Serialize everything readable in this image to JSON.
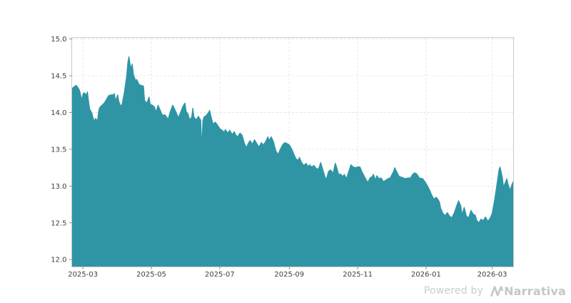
{
  "chart_data": {
    "type": "area",
    "grid": true,
    "legend": "none",
    "x_axis": {
      "range": [
        "2025-02-19",
        "2026-03-20"
      ],
      "tick_dates": [
        "2025-03-01",
        "2025-05-01",
        "2025-07-01",
        "2025-09-01",
        "2025-11-01",
        "2026-01-01",
        "2026-03-01"
      ],
      "tick_labels": [
        "2025-03",
        "2025-05",
        "2025-07",
        "2025-09",
        "2025-11",
        "2026-01",
        "2026-03"
      ]
    },
    "y_axis": {
      "range": [
        11.9,
        15.02
      ],
      "ticks": [
        12.0,
        12.5,
        13.0,
        13.5,
        14.0,
        14.5,
        15.0
      ],
      "tick_labels": [
        "12.0",
        "12.5",
        "13.0",
        "13.5",
        "14.0",
        "14.5",
        "15.0"
      ]
    },
    "series": [
      {
        "name": "value",
        "color": "#2F95A5",
        "points": [
          [
            "2025-02-19",
            14.32
          ],
          [
            "2025-02-21",
            14.35
          ],
          [
            "2025-02-23",
            14.37
          ],
          [
            "2025-02-25",
            14.33
          ],
          [
            "2025-02-26",
            14.3
          ],
          [
            "2025-02-28",
            14.17
          ],
          [
            "2025-03-01",
            14.25
          ],
          [
            "2025-03-02",
            14.27
          ],
          [
            "2025-03-04",
            14.24
          ],
          [
            "2025-03-05",
            14.28
          ],
          [
            "2025-03-06",
            14.15
          ],
          [
            "2025-03-07",
            14.05
          ],
          [
            "2025-03-09",
            13.99
          ],
          [
            "2025-03-10",
            13.93
          ],
          [
            "2025-03-11",
            13.87
          ],
          [
            "2025-03-12",
            13.92
          ],
          [
            "2025-03-14",
            13.89
          ],
          [
            "2025-03-15",
            14.02
          ],
          [
            "2025-03-16",
            14.07
          ],
          [
            "2025-03-18",
            14.1
          ],
          [
            "2025-03-20",
            14.13
          ],
          [
            "2025-03-22",
            14.18
          ],
          [
            "2025-03-24",
            14.23
          ],
          [
            "2025-03-26",
            14.24
          ],
          [
            "2025-03-28",
            14.24
          ],
          [
            "2025-03-29",
            14.26
          ],
          [
            "2025-03-30",
            14.16
          ],
          [
            "2025-04-01",
            14.24
          ],
          [
            "2025-04-02",
            14.15
          ],
          [
            "2025-04-04",
            14.08
          ],
          [
            "2025-04-05",
            14.12
          ],
          [
            "2025-04-07",
            14.28
          ],
          [
            "2025-04-09",
            14.5
          ],
          [
            "2025-04-10",
            14.68
          ],
          [
            "2025-04-11",
            14.76
          ],
          [
            "2025-04-12",
            14.66
          ],
          [
            "2025-04-13",
            14.6
          ],
          [
            "2025-04-14",
            14.66
          ],
          [
            "2025-04-15",
            14.52
          ],
          [
            "2025-04-17",
            14.43
          ],
          [
            "2025-04-18",
            14.45
          ],
          [
            "2025-04-20",
            14.38
          ],
          [
            "2025-04-22",
            14.37
          ],
          [
            "2025-04-24",
            14.36
          ],
          [
            "2025-04-25",
            14.16
          ],
          [
            "2025-04-27",
            14.13
          ],
          [
            "2025-04-29",
            14.21
          ],
          [
            "2025-04-30",
            14.11
          ],
          [
            "2025-05-02",
            14.1
          ],
          [
            "2025-05-04",
            14.07
          ],
          [
            "2025-05-05",
            14.0
          ],
          [
            "2025-05-07",
            14.1
          ],
          [
            "2025-05-09",
            14.03
          ],
          [
            "2025-05-11",
            13.96
          ],
          [
            "2025-05-13",
            13.97
          ],
          [
            "2025-05-15",
            13.93
          ],
          [
            "2025-05-16",
            13.91
          ],
          [
            "2025-05-18",
            14.02
          ],
          [
            "2025-05-20",
            14.1
          ],
          [
            "2025-05-22",
            14.04
          ],
          [
            "2025-05-24",
            13.97
          ],
          [
            "2025-05-25",
            13.93
          ],
          [
            "2025-05-27",
            14.0
          ],
          [
            "2025-05-29",
            14.08
          ],
          [
            "2025-05-31",
            14.13
          ],
          [
            "2025-06-01",
            14.02
          ],
          [
            "2025-06-03",
            13.97
          ],
          [
            "2025-06-04",
            13.9
          ],
          [
            "2025-06-06",
            13.94
          ],
          [
            "2025-06-07",
            14.06
          ],
          [
            "2025-06-08",
            13.94
          ],
          [
            "2025-06-10",
            13.9
          ],
          [
            "2025-06-12",
            13.95
          ],
          [
            "2025-06-13",
            13.92
          ],
          [
            "2025-06-14",
            13.9
          ],
          [
            "2025-06-15",
            13.52
          ],
          [
            "2025-06-16",
            13.89
          ],
          [
            "2025-06-17",
            13.94
          ],
          [
            "2025-06-19",
            13.96
          ],
          [
            "2025-06-21",
            14.0
          ],
          [
            "2025-06-22",
            14.03
          ],
          [
            "2025-06-24",
            13.9
          ],
          [
            "2025-06-25",
            13.84
          ],
          [
            "2025-06-27",
            13.87
          ],
          [
            "2025-06-29",
            13.83
          ],
          [
            "2025-07-01",
            13.78
          ],
          [
            "2025-07-03",
            13.76
          ],
          [
            "2025-07-05",
            13.73
          ],
          [
            "2025-07-06",
            13.77
          ],
          [
            "2025-07-08",
            13.72
          ],
          [
            "2025-07-10",
            13.76
          ],
          [
            "2025-07-12",
            13.7
          ],
          [
            "2025-07-14",
            13.74
          ],
          [
            "2025-07-15",
            13.7
          ],
          [
            "2025-07-17",
            13.67
          ],
          [
            "2025-07-19",
            13.72
          ],
          [
            "2025-07-21",
            13.69
          ],
          [
            "2025-07-23",
            13.58
          ],
          [
            "2025-07-25",
            13.52
          ],
          [
            "2025-07-26",
            13.57
          ],
          [
            "2025-07-28",
            13.62
          ],
          [
            "2025-07-30",
            13.57
          ],
          [
            "2025-08-01",
            13.63
          ],
          [
            "2025-08-03",
            13.58
          ],
          [
            "2025-08-05",
            13.53
          ],
          [
            "2025-08-07",
            13.59
          ],
          [
            "2025-08-09",
            13.56
          ],
          [
            "2025-08-11",
            13.61
          ],
          [
            "2025-08-13",
            13.67
          ],
          [
            "2025-08-14",
            13.62
          ],
          [
            "2025-08-16",
            13.67
          ],
          [
            "2025-08-18",
            13.6
          ],
          [
            "2025-08-20",
            13.48
          ],
          [
            "2025-08-22",
            13.43
          ],
          [
            "2025-08-24",
            13.5
          ],
          [
            "2025-08-26",
            13.56
          ],
          [
            "2025-08-28",
            13.59
          ],
          [
            "2025-08-30",
            13.58
          ],
          [
            "2025-09-01",
            13.56
          ],
          [
            "2025-09-03",
            13.51
          ],
          [
            "2025-09-05",
            13.44
          ],
          [
            "2025-09-07",
            13.37
          ],
          [
            "2025-09-09",
            13.35
          ],
          [
            "2025-09-10",
            13.39
          ],
          [
            "2025-09-12",
            13.32
          ],
          [
            "2025-09-14",
            13.28
          ],
          [
            "2025-09-16",
            13.31
          ],
          [
            "2025-09-18",
            13.26
          ],
          [
            "2025-09-19",
            13.29
          ],
          [
            "2025-09-21",
            13.26
          ],
          [
            "2025-09-23",
            13.28
          ],
          [
            "2025-09-25",
            13.24
          ],
          [
            "2025-09-27",
            13.23
          ],
          [
            "2025-09-29",
            13.32
          ],
          [
            "2025-10-01",
            13.22
          ],
          [
            "2025-10-03",
            13.12
          ],
          [
            "2025-10-04",
            13.09
          ],
          [
            "2025-10-06",
            13.2
          ],
          [
            "2025-10-08",
            13.22
          ],
          [
            "2025-10-10",
            13.17
          ],
          [
            "2025-10-12",
            13.31
          ],
          [
            "2025-10-13",
            13.27
          ],
          [
            "2025-10-15",
            13.16
          ],
          [
            "2025-10-17",
            13.16
          ],
          [
            "2025-10-19",
            13.13
          ],
          [
            "2025-10-20",
            13.16
          ],
          [
            "2025-10-22",
            13.1
          ],
          [
            "2025-10-24",
            13.2
          ],
          [
            "2025-10-26",
            13.29
          ],
          [
            "2025-10-28",
            13.26
          ],
          [
            "2025-10-30",
            13.25
          ],
          [
            "2025-11-01",
            13.26
          ],
          [
            "2025-11-03",
            13.26
          ],
          [
            "2025-11-05",
            13.19
          ],
          [
            "2025-11-06",
            13.16
          ],
          [
            "2025-11-08",
            13.1
          ],
          [
            "2025-11-10",
            13.05
          ],
          [
            "2025-11-12",
            13.11
          ],
          [
            "2025-11-14",
            13.13
          ],
          [
            "2025-11-15",
            13.16
          ],
          [
            "2025-11-17",
            13.08
          ],
          [
            "2025-11-18",
            13.14
          ],
          [
            "2025-11-20",
            13.1
          ],
          [
            "2025-11-22",
            13.11
          ],
          [
            "2025-11-24",
            13.06
          ],
          [
            "2025-11-26",
            13.08
          ],
          [
            "2025-11-28",
            13.1
          ],
          [
            "2025-11-30",
            13.11
          ],
          [
            "2025-12-03",
            13.2
          ],
          [
            "2025-12-04",
            13.25
          ],
          [
            "2025-12-05",
            13.22
          ],
          [
            "2025-12-06",
            13.19
          ],
          [
            "2025-12-08",
            13.13
          ],
          [
            "2025-12-10",
            13.12
          ],
          [
            "2025-12-12",
            13.11
          ],
          [
            "2025-12-13",
            13.1
          ],
          [
            "2025-12-16",
            13.11
          ],
          [
            "2025-12-18",
            13.11
          ],
          [
            "2025-12-20",
            13.16
          ],
          [
            "2025-12-22",
            13.18
          ],
          [
            "2025-12-24",
            13.16
          ],
          [
            "2025-12-26",
            13.11
          ],
          [
            "2025-12-29",
            13.1
          ],
          [
            "2025-12-31",
            13.06
          ],
          [
            "2026-01-02",
            13.01
          ],
          [
            "2026-01-04",
            12.95
          ],
          [
            "2026-01-06",
            12.88
          ],
          [
            "2026-01-08",
            12.82
          ],
          [
            "2026-01-10",
            12.85
          ],
          [
            "2026-01-12",
            12.81
          ],
          [
            "2026-01-13",
            12.78
          ],
          [
            "2026-01-14",
            12.7
          ],
          [
            "2026-01-16",
            12.63
          ],
          [
            "2026-01-18",
            12.6
          ],
          [
            "2026-01-20",
            12.64
          ],
          [
            "2026-01-22",
            12.59
          ],
          [
            "2026-01-24",
            12.57
          ],
          [
            "2026-01-26",
            12.63
          ],
          [
            "2026-01-28",
            12.72
          ],
          [
            "2026-01-30",
            12.8
          ],
          [
            "2026-02-01",
            12.73
          ],
          [
            "2026-02-02",
            12.61
          ],
          [
            "2026-02-04",
            12.71
          ],
          [
            "2026-02-06",
            12.59
          ],
          [
            "2026-02-08",
            12.57
          ],
          [
            "2026-02-10",
            12.67
          ],
          [
            "2026-02-12",
            12.62
          ],
          [
            "2026-02-14",
            12.6
          ],
          [
            "2026-02-15",
            12.54
          ],
          [
            "2026-02-17",
            12.5
          ],
          [
            "2026-02-19",
            12.55
          ],
          [
            "2026-02-21",
            12.53
          ],
          [
            "2026-02-23",
            12.58
          ],
          [
            "2026-02-25",
            12.52
          ],
          [
            "2026-02-27",
            12.56
          ],
          [
            "2026-03-01",
            12.63
          ],
          [
            "2026-03-03",
            12.8
          ],
          [
            "2026-03-05",
            13.0
          ],
          [
            "2026-03-07",
            13.22
          ],
          [
            "2026-03-08",
            13.26
          ],
          [
            "2026-03-10",
            13.12
          ],
          [
            "2026-03-11",
            12.99
          ],
          [
            "2026-03-13",
            13.06
          ],
          [
            "2026-03-14",
            13.1
          ],
          [
            "2026-03-15",
            13.03
          ],
          [
            "2026-03-17",
            12.94
          ],
          [
            "2026-03-18",
            13.0
          ],
          [
            "2026-03-20",
            13.07
          ]
        ]
      }
    ]
  },
  "colors": {
    "area": "#2F95A5",
    "grid": "#e4e4e4",
    "spine": "#c9c9c9",
    "tick": "#707070",
    "label": "#3e3e3e",
    "watermark": "#c9c9c9",
    "background": "#ffffff"
  },
  "watermark": {
    "powered_by": "Powered by",
    "brand": "Narrativa"
  }
}
